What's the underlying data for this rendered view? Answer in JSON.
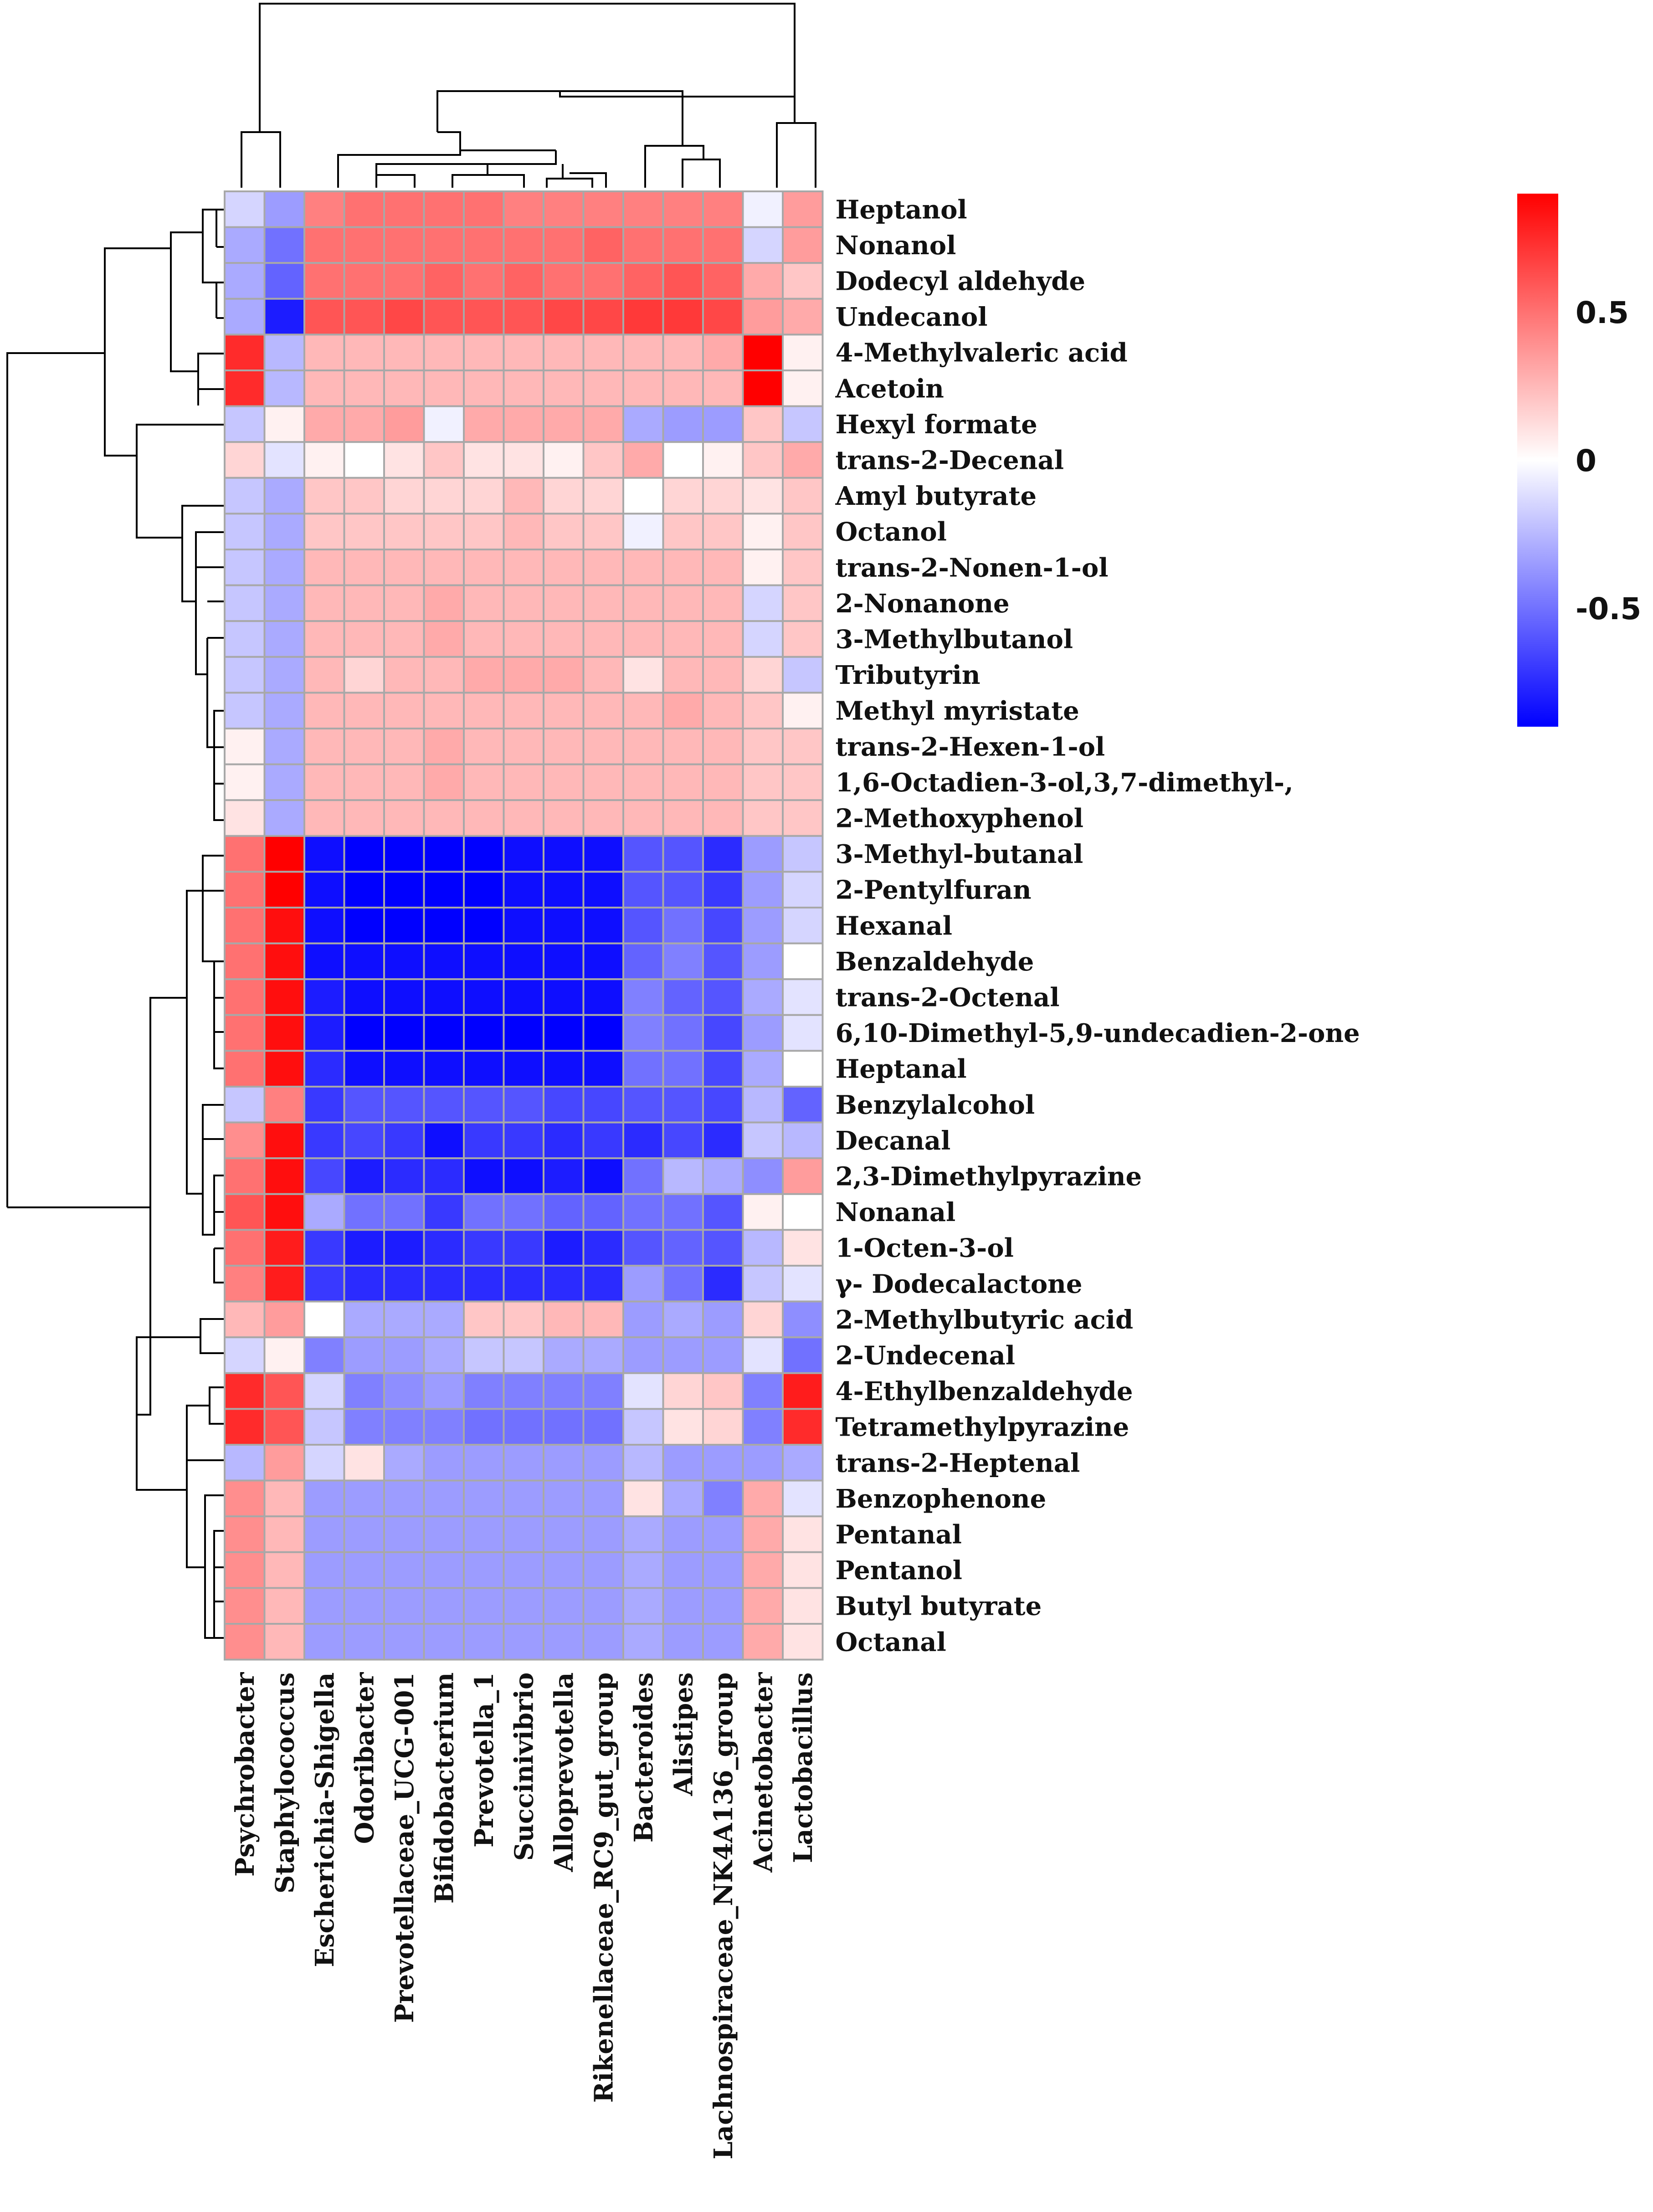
{
  "chart_data": {
    "type": "heatmap",
    "title": "",
    "xlabel": "",
    "ylabel": "",
    "columns": [
      "Psychrobacter",
      "Staphylococcus",
      "Escherichia-Shigella",
      "Odoribacter",
      "Prevotellaceae_UCG-001",
      "Bifidobacterium",
      "Prevotella_1",
      "Succinivibrio",
      "Alloprevotella",
      "Rikenellaceae_RC9_gut_group",
      "Bacteroides",
      "Alistipes",
      "Lachnospiraceae_NK4A136_group",
      "Acinetobacter",
      "Lactobacillus"
    ],
    "rows": [
      "Heptanol",
      "Nonanol",
      "Dodecyl aldehyde",
      "Undecanol",
      "4-Methylvaleric acid",
      "Acetoin",
      "Hexyl formate",
      "trans-2-Decenal",
      "Amyl butyrate",
      "Octanol",
      "trans-2-Nonen-1-ol",
      "2-Nonanone",
      "3-Methylbutanol",
      "Tributyrin",
      "Methyl myristate",
      "trans-2-Hexen-1-ol",
      "1,6-Octadien-3-ol,3,7-dimethyl-,",
      "2-Methoxyphenol",
      "3-Methyl-butanal",
      "2-Pentylfuran",
      "Hexanal",
      "Benzaldehyde",
      "trans-2-Octenal",
      "6,10-Dimethyl-5,9-undecadien-2-one",
      "Heptanal",
      "Benzylalcohol",
      "Decanal",
      "2,3-Dimethylpyrazine",
      "Nonanal",
      "1-Octen-3-ol",
      "γ- Dodecalactone",
      "2-Methylbutyric acid",
      "2-Undecenal",
      "4-Ethylbenzaldehyde",
      "Tetramethylpyrazine",
      "trans-2-Heptenal",
      "Benzophenone",
      "Pentanal",
      "Pentanol",
      "Butyl butyrate",
      "Octanal"
    ],
    "values": [
      [
        -0.15,
        -0.35,
        0.45,
        0.5,
        0.5,
        0.5,
        0.5,
        0.45,
        0.45,
        0.45,
        0.45,
        0.45,
        0.45,
        -0.05,
        0.35
      ],
      [
        -0.3,
        -0.5,
        0.5,
        0.5,
        0.5,
        0.5,
        0.5,
        0.5,
        0.5,
        0.55,
        0.5,
        0.5,
        0.5,
        -0.15,
        0.35
      ],
      [
        -0.3,
        -0.55,
        0.5,
        0.5,
        0.5,
        0.55,
        0.5,
        0.55,
        0.5,
        0.5,
        0.55,
        0.6,
        0.55,
        0.3,
        0.2
      ],
      [
        -0.3,
        -0.8,
        0.6,
        0.6,
        0.65,
        0.6,
        0.6,
        0.6,
        0.65,
        0.65,
        0.7,
        0.7,
        0.65,
        0.35,
        0.3
      ],
      [
        0.75,
        -0.25,
        0.25,
        0.25,
        0.25,
        0.25,
        0.25,
        0.25,
        0.25,
        0.25,
        0.25,
        0.25,
        0.3,
        0.9,
        0.05
      ],
      [
        0.75,
        -0.25,
        0.25,
        0.25,
        0.25,
        0.25,
        0.25,
        0.25,
        0.25,
        0.25,
        0.25,
        0.25,
        0.25,
        0.9,
        0.05
      ],
      [
        -0.2,
        0.05,
        0.3,
        0.3,
        0.35,
        -0.05,
        0.3,
        0.3,
        0.3,
        0.3,
        -0.3,
        -0.35,
        -0.35,
        0.2,
        -0.2
      ],
      [
        0.15,
        -0.1,
        0.05,
        0.0,
        0.1,
        0.2,
        0.1,
        0.1,
        0.05,
        0.2,
        0.3,
        0.0,
        0.05,
        0.2,
        0.3
      ],
      [
        -0.2,
        -0.3,
        0.2,
        0.2,
        0.15,
        0.15,
        0.15,
        0.25,
        0.15,
        0.15,
        0.0,
        0.15,
        0.15,
        0.1,
        0.2
      ],
      [
        -0.2,
        -0.3,
        0.2,
        0.2,
        0.2,
        0.2,
        0.2,
        0.25,
        0.2,
        0.2,
        -0.05,
        0.2,
        0.2,
        0.05,
        0.2
      ],
      [
        -0.2,
        -0.3,
        0.25,
        0.25,
        0.25,
        0.25,
        0.25,
        0.25,
        0.25,
        0.25,
        0.25,
        0.25,
        0.25,
        0.05,
        0.2
      ],
      [
        -0.2,
        -0.3,
        0.25,
        0.25,
        0.25,
        0.3,
        0.25,
        0.25,
        0.25,
        0.25,
        0.25,
        0.25,
        0.25,
        -0.15,
        0.2
      ],
      [
        -0.2,
        -0.3,
        0.25,
        0.25,
        0.25,
        0.3,
        0.25,
        0.25,
        0.25,
        0.25,
        0.25,
        0.25,
        0.25,
        -0.15,
        0.2
      ],
      [
        -0.2,
        -0.3,
        0.25,
        0.15,
        0.25,
        0.25,
        0.3,
        0.3,
        0.3,
        0.25,
        0.1,
        0.25,
        0.25,
        0.15,
        -0.2
      ],
      [
        -0.2,
        -0.3,
        0.25,
        0.25,
        0.25,
        0.25,
        0.25,
        0.25,
        0.25,
        0.25,
        0.25,
        0.3,
        0.25,
        0.2,
        0.05
      ],
      [
        0.05,
        -0.3,
        0.25,
        0.25,
        0.25,
        0.3,
        0.25,
        0.25,
        0.25,
        0.25,
        0.25,
        0.25,
        0.25,
        0.2,
        0.2
      ],
      [
        0.05,
        -0.3,
        0.25,
        0.25,
        0.25,
        0.3,
        0.25,
        0.25,
        0.25,
        0.25,
        0.25,
        0.25,
        0.25,
        0.2,
        0.2
      ],
      [
        0.1,
        -0.3,
        0.25,
        0.25,
        0.25,
        0.25,
        0.25,
        0.25,
        0.25,
        0.25,
        0.25,
        0.25,
        0.25,
        0.2,
        0.2
      ],
      [
        0.5,
        0.9,
        -0.85,
        -0.9,
        -0.9,
        -0.9,
        -0.9,
        -0.85,
        -0.85,
        -0.85,
        -0.6,
        -0.6,
        -0.75,
        -0.35,
        -0.2
      ],
      [
        0.5,
        0.9,
        -0.85,
        -0.9,
        -0.9,
        -0.9,
        -0.9,
        -0.85,
        -0.85,
        -0.85,
        -0.6,
        -0.6,
        -0.7,
        -0.35,
        -0.15
      ],
      [
        0.5,
        0.85,
        -0.85,
        -0.9,
        -0.9,
        -0.9,
        -0.9,
        -0.85,
        -0.85,
        -0.85,
        -0.6,
        -0.5,
        -0.65,
        -0.35,
        -0.15
      ],
      [
        0.5,
        0.85,
        -0.85,
        -0.85,
        -0.85,
        -0.85,
        -0.85,
        -0.85,
        -0.85,
        -0.85,
        -0.55,
        -0.45,
        -0.6,
        -0.35,
        0.0
      ],
      [
        0.5,
        0.85,
        -0.8,
        -0.85,
        -0.85,
        -0.85,
        -0.85,
        -0.85,
        -0.85,
        -0.85,
        -0.45,
        -0.55,
        -0.6,
        -0.3,
        -0.1
      ],
      [
        0.5,
        0.85,
        -0.8,
        -0.9,
        -0.9,
        -0.9,
        -0.9,
        -0.95,
        -0.9,
        -0.9,
        -0.45,
        -0.5,
        -0.65,
        -0.35,
        -0.1
      ],
      [
        0.5,
        0.85,
        -0.75,
        -0.85,
        -0.85,
        -0.85,
        -0.85,
        -0.85,
        -0.85,
        -0.85,
        -0.5,
        -0.5,
        -0.65,
        -0.3,
        0.0
      ],
      [
        -0.2,
        0.45,
        -0.7,
        -0.6,
        -0.6,
        -0.6,
        -0.6,
        -0.6,
        -0.65,
        -0.65,
        -0.6,
        -0.6,
        -0.65,
        -0.25,
        -0.55
      ],
      [
        0.4,
        0.85,
        -0.7,
        -0.65,
        -0.7,
        -0.85,
        -0.7,
        -0.7,
        -0.75,
        -0.7,
        -0.75,
        -0.65,
        -0.75,
        -0.2,
        -0.25
      ],
      [
        0.5,
        0.85,
        -0.65,
        -0.8,
        -0.75,
        -0.75,
        -0.85,
        -0.85,
        -0.8,
        -0.85,
        -0.5,
        -0.25,
        -0.3,
        -0.4,
        0.35
      ],
      [
        0.6,
        0.85,
        -0.3,
        -0.5,
        -0.5,
        -0.7,
        -0.5,
        -0.5,
        -0.55,
        -0.55,
        -0.5,
        -0.5,
        -0.6,
        0.05,
        0.0
      ],
      [
        0.5,
        0.8,
        -0.7,
        -0.8,
        -0.8,
        -0.75,
        -0.7,
        -0.7,
        -0.8,
        -0.75,
        -0.6,
        -0.55,
        -0.6,
        -0.25,
        0.1
      ],
      [
        0.45,
        0.8,
        -0.7,
        -0.75,
        -0.75,
        -0.75,
        -0.75,
        -0.75,
        -0.75,
        -0.75,
        -0.35,
        -0.5,
        -0.75,
        -0.2,
        -0.1
      ],
      [
        0.25,
        0.35,
        0.0,
        -0.3,
        -0.3,
        -0.3,
        0.2,
        0.2,
        0.25,
        0.25,
        -0.35,
        -0.3,
        -0.35,
        0.15,
        -0.4
      ],
      [
        -0.15,
        0.05,
        -0.45,
        -0.35,
        -0.35,
        -0.3,
        -0.2,
        -0.2,
        -0.3,
        -0.3,
        -0.35,
        -0.35,
        -0.35,
        -0.1,
        -0.5
      ],
      [
        0.75,
        0.6,
        -0.15,
        -0.45,
        -0.4,
        -0.35,
        -0.45,
        -0.45,
        -0.45,
        -0.45,
        -0.1,
        0.15,
        0.2,
        -0.45,
        0.8
      ],
      [
        0.75,
        0.6,
        -0.2,
        -0.45,
        -0.45,
        -0.45,
        -0.5,
        -0.5,
        -0.5,
        -0.5,
        -0.2,
        0.1,
        0.15,
        -0.45,
        0.75
      ],
      [
        -0.25,
        0.35,
        -0.15,
        0.1,
        -0.3,
        -0.35,
        -0.35,
        -0.35,
        -0.35,
        -0.35,
        -0.25,
        -0.35,
        -0.35,
        -0.35,
        -0.3
      ],
      [
        0.4,
        0.25,
        -0.35,
        -0.35,
        -0.35,
        -0.35,
        -0.35,
        -0.35,
        -0.35,
        -0.35,
        0.1,
        -0.3,
        -0.45,
        0.3,
        -0.1
      ],
      [
        0.4,
        0.25,
        -0.35,
        -0.35,
        -0.35,
        -0.35,
        -0.35,
        -0.35,
        -0.35,
        -0.35,
        -0.3,
        -0.35,
        -0.35,
        0.3,
        0.1
      ],
      [
        0.4,
        0.25,
        -0.35,
        -0.35,
        -0.35,
        -0.35,
        -0.35,
        -0.35,
        -0.35,
        -0.35,
        -0.3,
        -0.35,
        -0.35,
        0.3,
        0.1
      ],
      [
        0.4,
        0.25,
        -0.35,
        -0.35,
        -0.35,
        -0.35,
        -0.35,
        -0.35,
        -0.35,
        -0.35,
        -0.3,
        -0.35,
        -0.35,
        0.3,
        0.1
      ],
      [
        0.4,
        0.25,
        -0.35,
        -0.35,
        -0.35,
        -0.35,
        -0.35,
        -0.35,
        -0.35,
        -0.35,
        -0.3,
        -0.35,
        -0.35,
        0.3,
        0.1
      ]
    ],
    "color_scale": {
      "min": -0.9,
      "max": 0.9,
      "low_color": "#0000ff",
      "mid_color": "#ffffff",
      "high_color": "#ff0000",
      "ticks": [
        {
          "value": 0.5,
          "label": "0.5"
        },
        {
          "value": 0,
          "label": "0"
        },
        {
          "value": -0.5,
          "label": "-0.5"
        }
      ],
      "legend_position": "top-right"
    },
    "grid": true,
    "grid_color": "#a8a8a8",
    "dendrograms": {
      "columns": "top",
      "rows": "left"
    }
  }
}
